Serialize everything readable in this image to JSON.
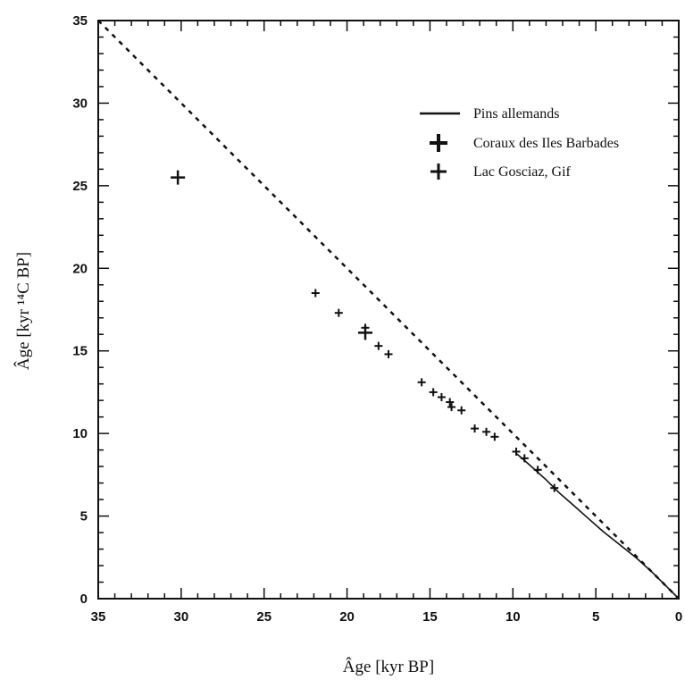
{
  "chart_data": {
    "type": "scatter",
    "xlabel": "Âge [kyr BP]",
    "ylabel": "Âge [kyr ¹⁴C BP]",
    "xlim": [
      35,
      0
    ],
    "ylim": [
      0,
      35
    ],
    "x_reversed": true,
    "xticks": [
      35,
      30,
      25,
      20,
      15,
      10,
      5,
      0
    ],
    "yticks": [
      0,
      5,
      10,
      15,
      20,
      25,
      30,
      35
    ],
    "grid": false,
    "legend_position": "top-right",
    "reference_line": {
      "x": [
        35,
        0
      ],
      "y": [
        35,
        0
      ],
      "style": "dashed"
    },
    "series": [
      {
        "name": "Pins allemands",
        "style": "line",
        "x": [
          9.8,
          9,
          8,
          7.2,
          6.4,
          5.5,
          4.6,
          3.6,
          2.6,
          1.6,
          0.8,
          0
        ],
        "y": [
          8.8,
          8.1,
          7.2,
          6.4,
          5.7,
          4.9,
          4.1,
          3.3,
          2.5,
          1.6,
          0.8,
          0
        ]
      },
      {
        "name": "Coraux des Iles Barbades",
        "style": "cross-large",
        "x": [
          30.2,
          18.9
        ],
        "y": [
          25.5,
          16.1
        ]
      },
      {
        "name": "Lac Gosciaz, Gif",
        "style": "cross-small",
        "x": [
          21.9,
          20.5,
          18.9,
          18.1,
          17.5,
          15.5,
          14.8,
          14.3,
          13.8,
          13.7,
          13.1,
          12.3,
          11.6,
          11.1,
          9.8,
          9.3,
          8.5,
          7.5
        ],
        "y": [
          18.5,
          17.3,
          16.4,
          15.3,
          14.8,
          13.1,
          12.5,
          12.2,
          11.9,
          11.6,
          11.4,
          10.3,
          10.1,
          9.8,
          8.9,
          8.5,
          7.8,
          6.7
        ]
      }
    ]
  }
}
